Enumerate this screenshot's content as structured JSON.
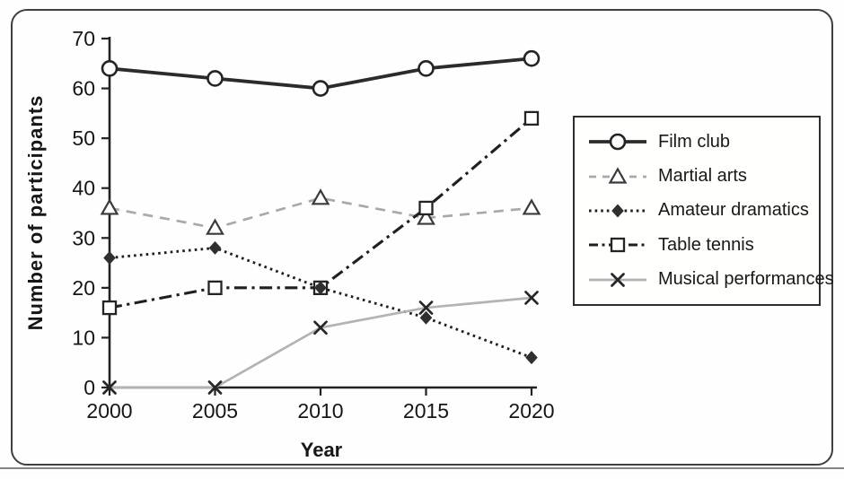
{
  "colors": {
    "axis": "#222222",
    "text": "#161616",
    "frame_border": "#3f3f3f",
    "legend_border": "#2e2e2e",
    "gray_line": "#b3b3b3",
    "gray_dashed": "#a9a9a9",
    "dark_line": "#2b2b2b"
  },
  "chart_data": {
    "type": "line",
    "title": "",
    "xlabel": "Year",
    "ylabel": "Number of participants",
    "x": [
      2000,
      2005,
      2010,
      2015,
      2020
    ],
    "ylim": [
      0,
      70
    ],
    "yticks": [
      0,
      10,
      20,
      30,
      40,
      50,
      60,
      70
    ],
    "grid": false,
    "legend_position": "right",
    "series": [
      {
        "name": "Film club",
        "values": [
          64,
          62,
          60,
          64,
          66
        ],
        "marker": "open-circle",
        "line_style": "solid-thick",
        "color": "#2b2b2b"
      },
      {
        "name": "Martial arts",
        "values": [
          36,
          32,
          38,
          34,
          36
        ],
        "marker": "open-triangle",
        "line_style": "dashed",
        "color": "#a9a9a9"
      },
      {
        "name": "Amateur dramatics",
        "values": [
          26,
          28,
          20,
          14,
          6
        ],
        "marker": "filled-diamond",
        "line_style": "dotted",
        "color": "#1f1f1f"
      },
      {
        "name": "Table tennis",
        "values": [
          16,
          20,
          20,
          36,
          54
        ],
        "marker": "open-square",
        "line_style": "dashdot",
        "color": "#1f1f1f"
      },
      {
        "name": "Musical performances",
        "values": [
          0,
          0,
          12,
          16,
          18
        ],
        "marker": "x-cross",
        "line_style": "solid-thin",
        "color": "#b3b3b3"
      }
    ]
  }
}
